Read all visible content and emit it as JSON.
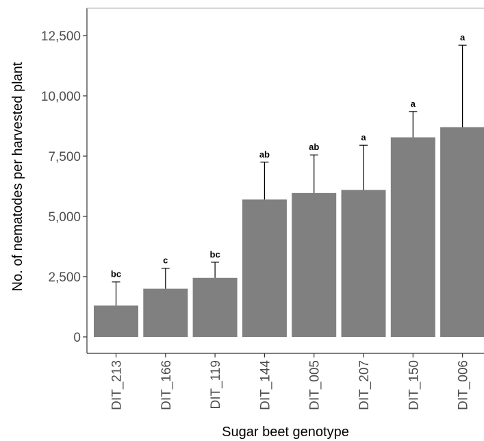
{
  "chart_data": {
    "type": "bar",
    "title": "",
    "xlabel": "Sugar beet genotype",
    "ylabel": "No. of nematodes per harvested plant",
    "categories": [
      "DIT_213",
      "DIT_166",
      "DIT_119",
      "DIT_144",
      "DIT_005",
      "DIT_207",
      "DIT_150",
      "DIT_006"
    ],
    "values": [
      1300,
      2000,
      2450,
      5700,
      5970,
      6100,
      8280,
      8700
    ],
    "error_upper": [
      2280,
      2850,
      3100,
      7250,
      7550,
      7950,
      9350,
      12100
    ],
    "significance_labels": [
      "bc",
      "c",
      "bc",
      "ab",
      "ab",
      "a",
      "a",
      "a"
    ],
    "yticks": [
      0,
      2500,
      5000,
      7500,
      10000,
      12500
    ],
    "ytick_labels": [
      "0",
      "2,500",
      "5,000",
      "7,500",
      "10,000",
      "12,500"
    ],
    "ylim": [
      -600,
      13700
    ],
    "grid": false,
    "legend": "none",
    "colors": {
      "bar": "#808080",
      "axis": "#333333",
      "background": "#ffffff"
    }
  }
}
